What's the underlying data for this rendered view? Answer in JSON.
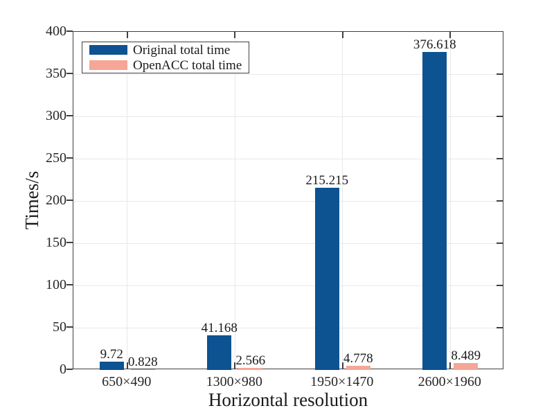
{
  "chart_data": {
    "type": "bar",
    "title": "",
    "xlabel": "Horizontal resolution",
    "ylabel": "Times/s",
    "categories": [
      "650×490",
      "1300×980",
      "1950×1470",
      "2600×1960"
    ],
    "series": [
      {
        "name": "Original total time",
        "color": "#0d5291",
        "values": [
          9.72,
          41.168,
          215.215,
          376.618
        ],
        "labels": [
          "9.72",
          "41.168",
          "215.215",
          "376.618"
        ]
      },
      {
        "name": "OpenACC total time",
        "color": "#f5a696",
        "values": [
          0.828,
          2.566,
          4.778,
          8.489
        ],
        "labels": [
          "0.828",
          "2.566",
          "4.778",
          "8.489"
        ]
      }
    ],
    "ylim": [
      0,
      400
    ],
    "yticks": [
      0,
      50,
      100,
      150,
      200,
      250,
      300,
      350,
      400
    ],
    "grid": true,
    "legend_position": "top-left"
  },
  "colors": {
    "axis": "#3f3f3f",
    "grid": "#e8e8e8",
    "background": "#ffffff",
    "text": "#262626"
  }
}
